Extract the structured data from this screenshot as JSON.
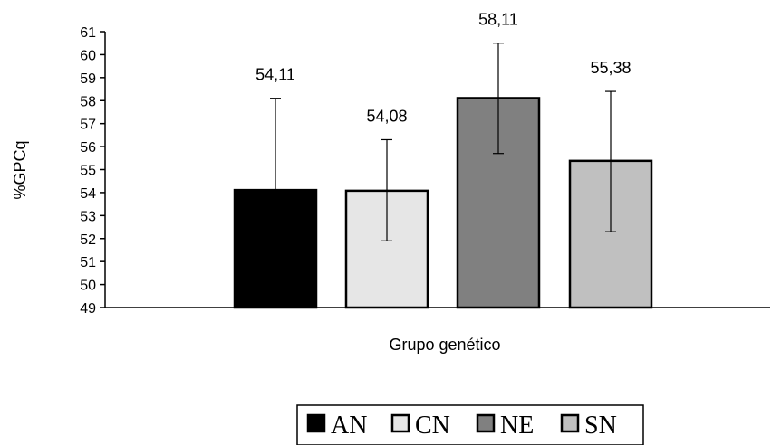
{
  "chart_data": {
    "type": "bar",
    "categories": [
      "AN",
      "CN",
      "NE",
      "SN"
    ],
    "values": [
      54.11,
      54.08,
      58.11,
      55.38
    ],
    "value_labels": [
      "54,11",
      "54,08",
      "58,11",
      "55,38"
    ],
    "error_bars": [
      [
        49,
        58.1
      ],
      [
        51.9,
        56.3
      ],
      [
        55.7,
        60.5
      ],
      [
        52.3,
        58.4
      ]
    ],
    "colors": [
      "#000000",
      "#e6e6e6",
      "#808080",
      "#c0c0c0"
    ],
    "xlabel": "Grupo genético",
    "ylabel": "%GPCq",
    "ylim": [
      49,
      61
    ],
    "yticks": [
      49,
      50,
      51,
      52,
      53,
      54,
      55,
      56,
      57,
      58,
      59,
      60,
      61
    ],
    "grid": false,
    "legend": {
      "placement": "bottom-center",
      "entries": [
        "AN",
        "CN",
        "NE",
        "SN"
      ]
    }
  }
}
